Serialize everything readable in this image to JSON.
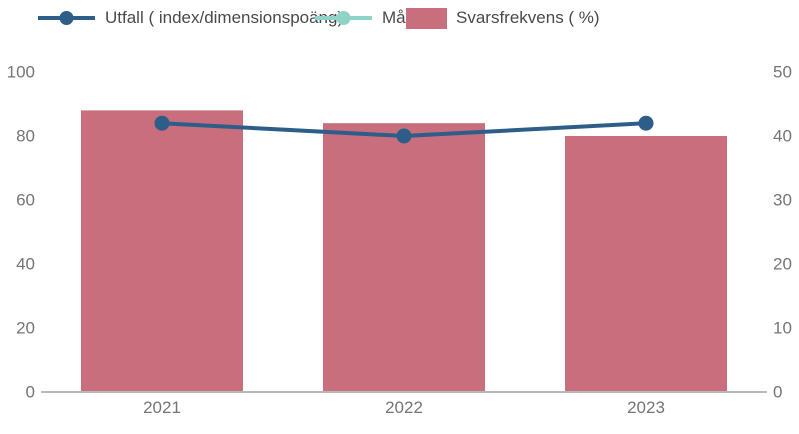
{
  "chart_data": {
    "type": "bar",
    "subtype": "bar+line combo",
    "title": "",
    "categories": [
      "2021",
      "2022",
      "2023"
    ],
    "series": [
      {
        "name": "Utfall ( index/dimensionspoäng)",
        "type": "line",
        "axis": "left",
        "color": "#2d5e8a",
        "marker": "circle",
        "values": [
          84,
          80,
          84
        ]
      },
      {
        "name": "Mål",
        "type": "line",
        "axis": "left",
        "color": "#8fd3c7",
        "marker": "circle",
        "values": []
      },
      {
        "name": "Svarsfrekvens ( %)",
        "type": "bar",
        "axis": "right",
        "color": "#c86e7d",
        "values": [
          44,
          42,
          40
        ]
      }
    ],
    "axes": {
      "left": {
        "min": 0,
        "max": 100,
        "ticks": [
          0,
          20,
          40,
          60,
          80,
          100
        ]
      },
      "right": {
        "min": 0,
        "max": 50,
        "ticks": [
          0,
          10,
          20,
          30,
          40,
          50
        ]
      }
    },
    "grid": false,
    "legend_position": "top-left",
    "colors": {
      "axis_line": "#b9b9b9",
      "axis_text": "#757575",
      "legend_text": "#4a4a4a",
      "background": "#ffffff"
    }
  }
}
